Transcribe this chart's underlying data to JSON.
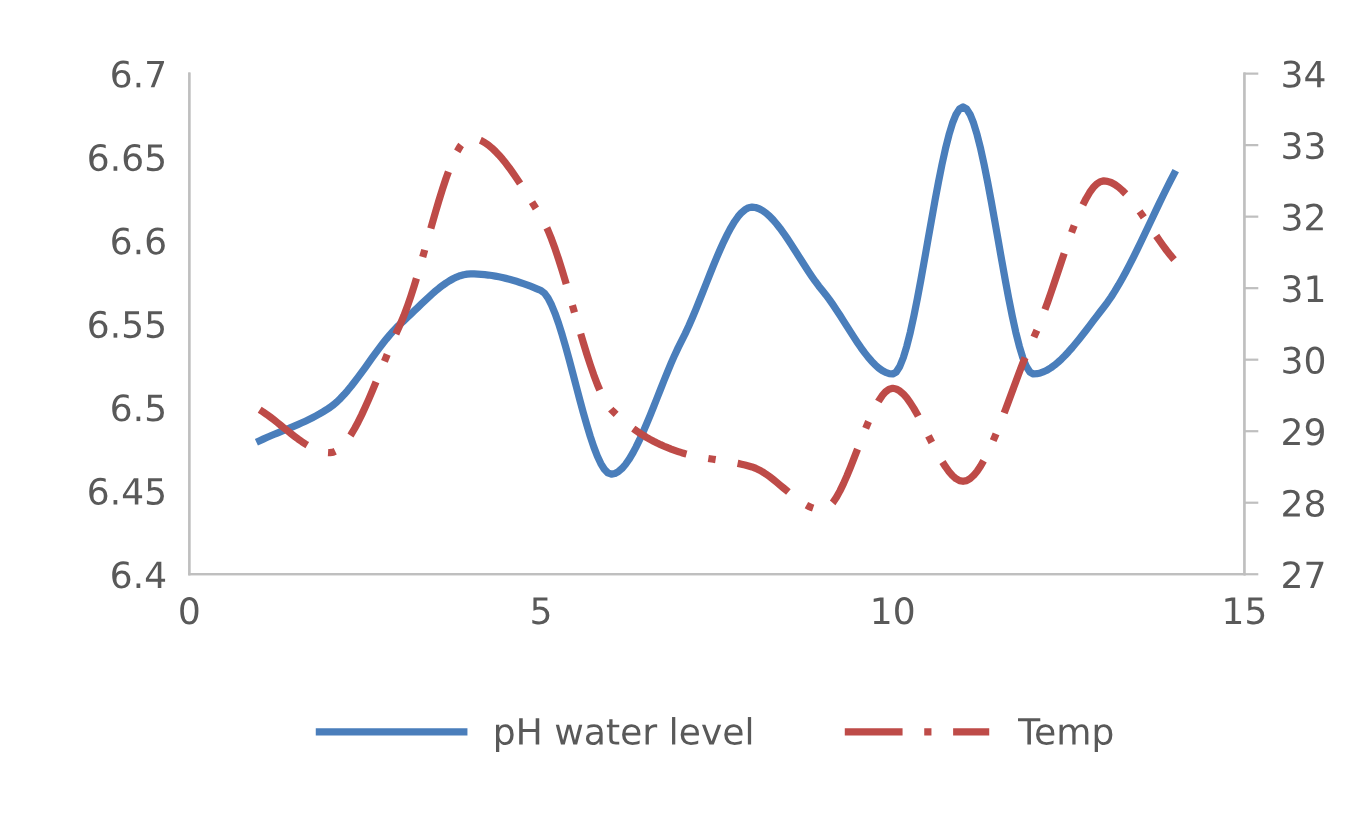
{
  "chart_data": {
    "type": "line",
    "x": [
      1,
      2,
      3,
      4,
      5,
      6,
      7,
      8,
      9,
      10,
      11,
      12,
      13,
      14
    ],
    "series": [
      {
        "name": "pH water level",
        "color": "#4a7ebb",
        "line_style": "solid",
        "values": [
          6.48,
          6.5,
          6.55,
          6.58,
          6.57,
          6.46,
          6.54,
          6.62,
          6.57,
          6.52,
          6.68,
          6.52,
          6.56,
          6.64
        ]
      },
      {
        "name": "Temp",
        "color": "#be4b48",
        "line_style": "dashdot",
        "axis": "y2",
        "values": [
          29.3,
          28.7,
          30.5,
          33.1,
          32.0,
          29.3,
          28.7,
          28.5,
          27.9,
          29.6,
          28.3,
          30.3,
          32.5,
          31.4
        ]
      }
    ],
    "xlim": [
      0,
      15
    ],
    "xticks": [
      0,
      5,
      10,
      15
    ],
    "ylim": [
      6.4,
      6.7
    ],
    "yticks": [
      6.4,
      6.45,
      6.5,
      6.55,
      6.6,
      6.65,
      6.7
    ],
    "y2lim": [
      27,
      34
    ],
    "y2ticks": [
      27,
      28,
      29,
      30,
      31,
      32,
      33,
      34
    ],
    "grid": false,
    "legend": "bottom",
    "marker": "none"
  }
}
